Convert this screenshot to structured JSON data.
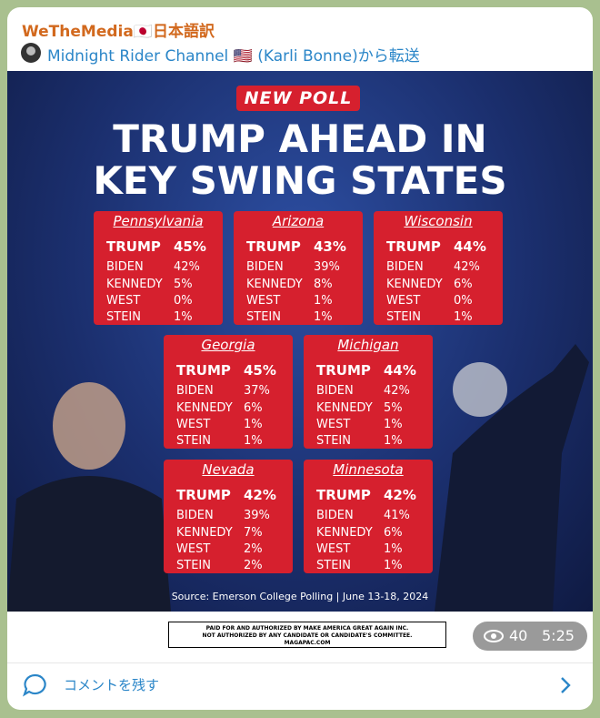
{
  "post": {
    "channel": "WeTheMedia🇯🇵日本語訳",
    "forwarded_from": "Midnight Rider Channel 🇺🇸 (Karli Bonne)から転送",
    "views": "40",
    "time": "5:25",
    "comment_button": "コメントを残す"
  },
  "poll_image": {
    "badge": "NEW POLL",
    "title_line1": "TRUMP AHEAD IN",
    "title_line2": "KEY SWING STATES",
    "states": [
      {
        "name": "Pennsylvania",
        "rows": [
          {
            "candidate": "TRUMP",
            "pct": "45%"
          },
          {
            "candidate": "BIDEN",
            "pct": "42%"
          },
          {
            "candidate": "KENNEDY",
            "pct": "5%"
          },
          {
            "candidate": "WEST",
            "pct": "0%"
          },
          {
            "candidate": "STEIN",
            "pct": "1%"
          }
        ]
      },
      {
        "name": "Arizona",
        "rows": [
          {
            "candidate": "TRUMP",
            "pct": "43%"
          },
          {
            "candidate": "BIDEN",
            "pct": "39%"
          },
          {
            "candidate": "KENNEDY",
            "pct": "8%"
          },
          {
            "candidate": "WEST",
            "pct": "1%"
          },
          {
            "candidate": "STEIN",
            "pct": "1%"
          }
        ]
      },
      {
        "name": "Wisconsin",
        "rows": [
          {
            "candidate": "TRUMP",
            "pct": "44%"
          },
          {
            "candidate": "BIDEN",
            "pct": "42%"
          },
          {
            "candidate": "KENNEDY",
            "pct": "6%"
          },
          {
            "candidate": "WEST",
            "pct": "0%"
          },
          {
            "candidate": "STEIN",
            "pct": "1%"
          }
        ]
      },
      {
        "name": "Georgia",
        "rows": [
          {
            "candidate": "TRUMP",
            "pct": "45%"
          },
          {
            "candidate": "BIDEN",
            "pct": "37%"
          },
          {
            "candidate": "KENNEDY",
            "pct": "6%"
          },
          {
            "candidate": "WEST",
            "pct": "1%"
          },
          {
            "candidate": "STEIN",
            "pct": "1%"
          }
        ]
      },
      {
        "name": "Michigan",
        "rows": [
          {
            "candidate": "TRUMP",
            "pct": "44%"
          },
          {
            "candidate": "BIDEN",
            "pct": "42%"
          },
          {
            "candidate": "KENNEDY",
            "pct": "5%"
          },
          {
            "candidate": "WEST",
            "pct": "1%"
          },
          {
            "candidate": "STEIN",
            "pct": "1%"
          }
        ]
      },
      {
        "name": "Nevada",
        "rows": [
          {
            "candidate": "TRUMP",
            "pct": "42%"
          },
          {
            "candidate": "BIDEN",
            "pct": "39%"
          },
          {
            "candidate": "KENNEDY",
            "pct": "7%"
          },
          {
            "candidate": "WEST",
            "pct": "2%"
          },
          {
            "candidate": "STEIN",
            "pct": "2%"
          }
        ]
      },
      {
        "name": "Minnesota",
        "rows": [
          {
            "candidate": "TRUMP",
            "pct": "42%"
          },
          {
            "candidate": "BIDEN",
            "pct": "41%"
          },
          {
            "candidate": "KENNEDY",
            "pct": "6%"
          },
          {
            "candidate": "WEST",
            "pct": "1%"
          },
          {
            "candidate": "STEIN",
            "pct": "1%"
          }
        ]
      }
    ],
    "source": "Source: Emerson College Polling | June 13-18, 2024"
  },
  "disclaimer": {
    "line1": "PAID FOR AND AUTHORIZED BY MAKE AMERICA GREAT AGAIN INC.",
    "line2": "NOT AUTHORIZED BY ANY CANDIDATE OR CANDIDATE'S COMMITTEE.",
    "line3": "MAGAPAC.COM"
  }
}
